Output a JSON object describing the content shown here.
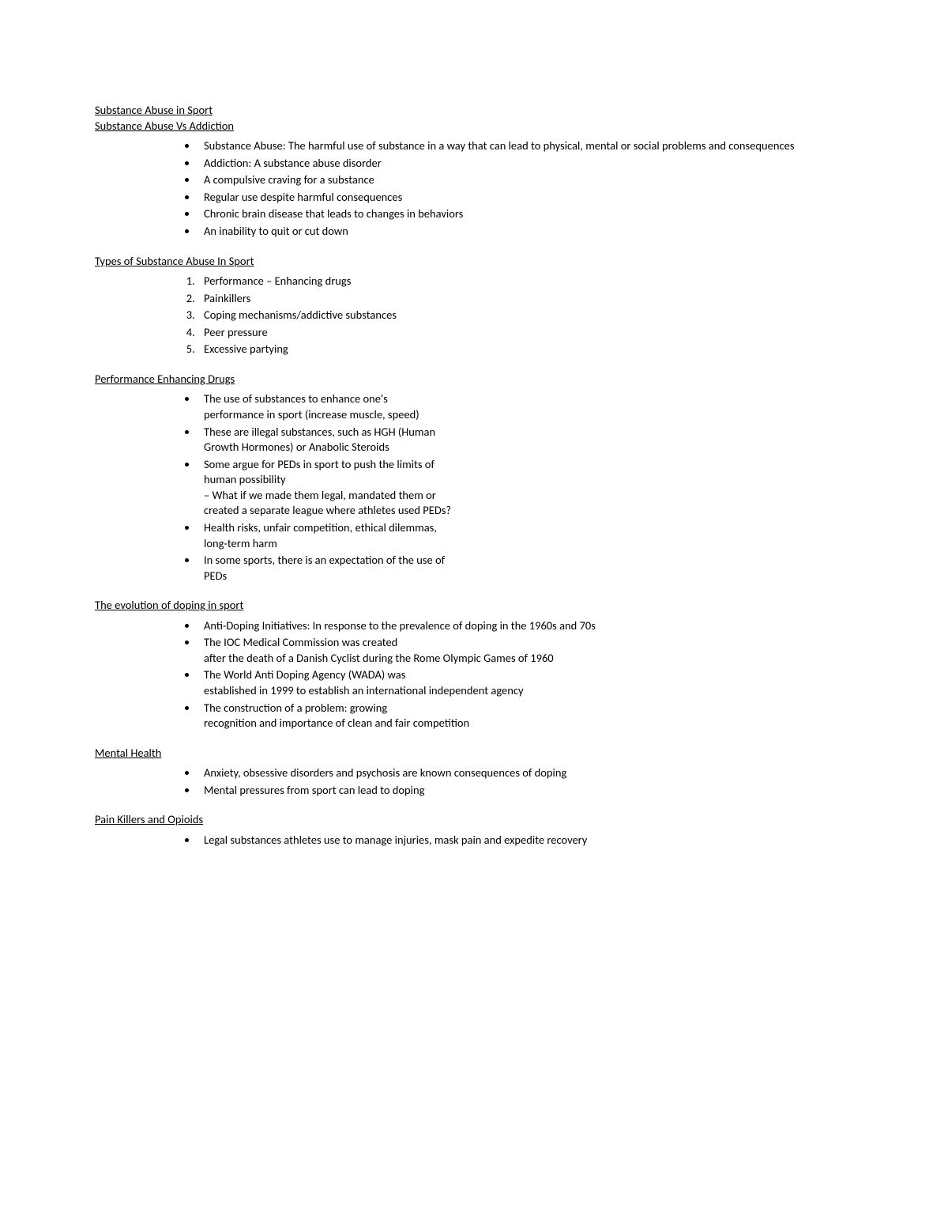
{
  "title1": "Substance Abuse in Sport",
  "title2": "Substance Abuse Vs Addiction",
  "section1_items": [
    "Substance Abuse: The harmful use of substance in a way that can lead to physical, mental or social problems and consequences",
    "Addiction: A substance abuse disorder",
    "A compulsive craving for a substance",
    "Regular use despite harmful consequences",
    "Chronic brain disease that leads to changes in behaviors",
    "An inability to quit or cut down"
  ],
  "section2_heading": "Types of Substance Abuse In Sport",
  "section2_items": [
    "Performance – Enhancing drugs",
    "Painkillers",
    "Coping mechanisms/addictive substances",
    "Peer pressure",
    "Excessive partying"
  ],
  "section3_heading": "Performance Enhancing Drugs",
  "section3_items": [
    {
      "main": "The use of substances to enhance one's",
      "sub": "performance in sport (increase muscle, speed)"
    },
    {
      "main": "These are illegal substances, such as HGH (Human",
      "sub": "Growth Hormones) or Anabolic Steroids"
    },
    {
      "main": "Some argue for PEDs in sport to push the limits of",
      "sub": "human possibility",
      "sub2": "– What if we made them legal, mandated them or",
      "sub3": "created a separate league where athletes used PEDs?"
    },
    {
      "main": "Health risks, unfair competition, ethical dilemmas,",
      "sub": "long-term harm"
    },
    {
      "main": "In some sports, there is an expectation of the use of",
      "sub": "PEDs"
    }
  ],
  "section4_heading": "The evolution of doping in sport",
  "section4_items": [
    {
      "main": "Anti-Doping Initiatives: In response to the prevalence of doping in the 1960s and 70s"
    },
    {
      "main": "The IOC Medical Commission was created",
      "sub": "after the death of a Danish Cyclist during the Rome Olympic Games of 1960"
    },
    {
      "main": "The World Anti Doping Agency (WADA) was",
      "sub": "established in 1999 to establish an international independent agency"
    },
    {
      "main": "The construction of a problem: growing",
      "sub": "recognition and importance of clean and fair competition"
    }
  ],
  "section5_heading": "Mental Health",
  "section5_items": [
    "Anxiety, obsessive disorders and psychosis are known consequences of doping",
    "Mental pressures from sport can lead to doping"
  ],
  "section6_heading": "Pain Killers and Opioids",
  "section6_items": [
    "Legal substances athletes use to manage injuries, mask pain and expedite recovery"
  ]
}
